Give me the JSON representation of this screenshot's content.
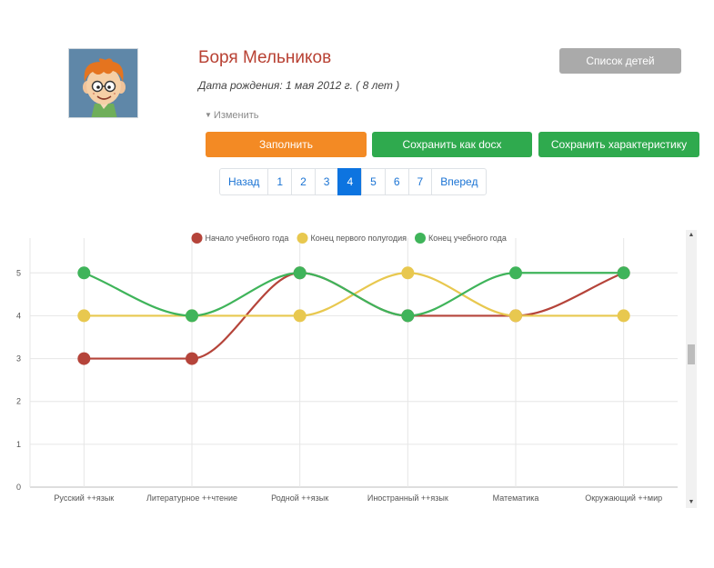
{
  "profile": {
    "name": "Боря Мельников",
    "birth_label": "Дата рождения: 1 мая 2012 г. ( 8 лет )",
    "edit_toggle": "Изменить"
  },
  "buttons": {
    "children_list": "Список детей",
    "fill": "Заполнить",
    "save_docx": "Сохранить как docx",
    "save_characteristic": "Сохранить характеристику"
  },
  "pagination": {
    "prev": "Назад",
    "pages": [
      "1",
      "2",
      "3",
      "4",
      "5",
      "6",
      "7"
    ],
    "active": "4",
    "next": "Вперед"
  },
  "colors": {
    "name": "#b84133",
    "fill_button": "#f38a24",
    "save_buttons": "#2faa4e",
    "children_button": "#aaaaaa",
    "active_page": "#0d74e0"
  },
  "chart_data": {
    "type": "line",
    "smooth": true,
    "categories": [
      "Русский ++язык",
      "Литературное ++чтение",
      "Родной ++язык",
      "Иностранный ++язык",
      "Математика",
      "Окружающий ++мир"
    ],
    "series": [
      {
        "name": "Начало учебного года",
        "color": "#b5443a",
        "values": [
          3,
          3,
          5,
          4,
          4,
          5
        ]
      },
      {
        "name": "Конец первого полугодия",
        "color": "#e8c84f",
        "values": [
          4,
          4,
          4,
          5,
          4,
          4
        ]
      },
      {
        "name": "Конец учебного года",
        "color": "#3fb45a",
        "values": [
          5,
          4,
          5,
          4,
          5,
          5
        ]
      }
    ],
    "yticks": [
      "0",
      "1",
      "2",
      "3",
      "4",
      "5"
    ],
    "ylim": [
      0,
      5.6
    ],
    "grid": true,
    "legend_position": "top-center"
  }
}
